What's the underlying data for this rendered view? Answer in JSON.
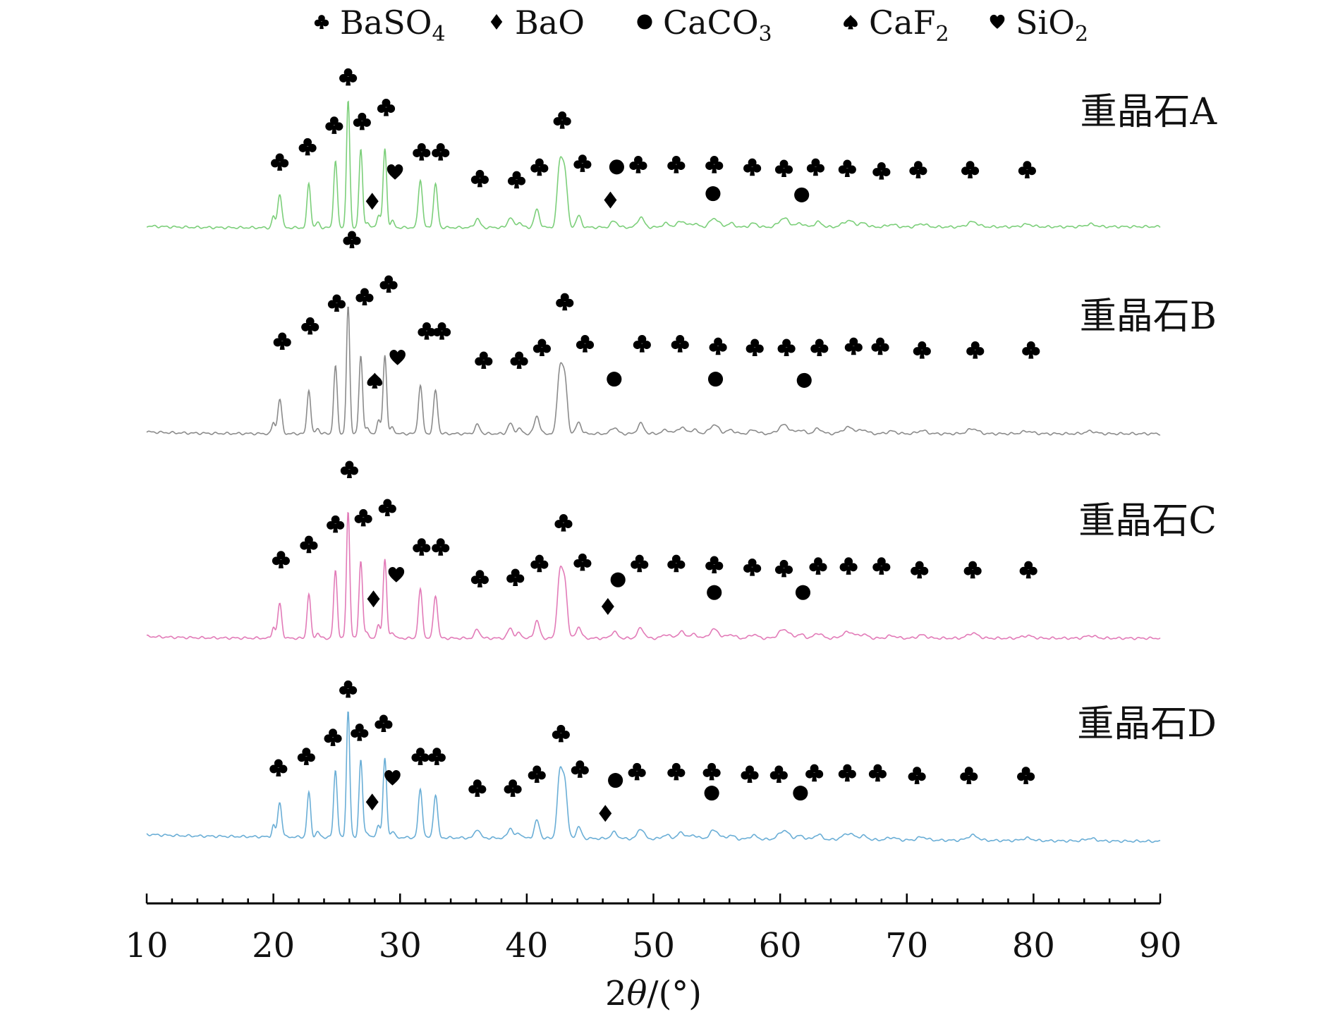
{
  "chart_data": {
    "type": "line",
    "title": "",
    "xlabel_prefix": "2",
    "xlabel_var": "θ",
    "xlabel_unit": "/(°)",
    "xlim": [
      10,
      90
    ],
    "xticks": [
      10,
      20,
      30,
      40,
      50,
      60,
      70,
      80,
      90
    ],
    "ylabel": "",
    "grid": false,
    "legend_position": "top",
    "legend": [
      {
        "symbol": "club",
        "base": "BaSO",
        "sub": "4"
      },
      {
        "symbol": "diamond",
        "base": "BaO",
        "sub": ""
      },
      {
        "symbol": "circle",
        "base": "CaCO",
        "sub": "3"
      },
      {
        "symbol": "spade",
        "base": "CaF",
        "sub": "2"
      },
      {
        "symbol": "heart",
        "base": "SiO",
        "sub": "2"
      }
    ],
    "peaks": [
      {
        "x": 20.5,
        "h": 0.27,
        "w": 0.16
      },
      {
        "x": 20.0,
        "h": 0.09,
        "w": 0.12
      },
      {
        "x": 22.8,
        "h": 0.35,
        "w": 0.14
      },
      {
        "x": 23.5,
        "h": 0.04,
        "w": 0.15
      },
      {
        "x": 24.9,
        "h": 0.53,
        "w": 0.14
      },
      {
        "x": 25.9,
        "h": 1.0,
        "w": 0.13
      },
      {
        "x": 26.9,
        "h": 0.61,
        "w": 0.14
      },
      {
        "x": 27.4,
        "h": 0.04,
        "w": 0.15
      },
      {
        "x": 28.3,
        "h": 0.1,
        "w": 0.14
      },
      {
        "x": 28.8,
        "h": 0.62,
        "w": 0.14
      },
      {
        "x": 29.4,
        "h": 0.05,
        "w": 0.15
      },
      {
        "x": 31.6,
        "h": 0.38,
        "w": 0.16
      },
      {
        "x": 32.8,
        "h": 0.34,
        "w": 0.16
      },
      {
        "x": 36.1,
        "h": 0.07,
        "w": 0.2
      },
      {
        "x": 38.7,
        "h": 0.08,
        "w": 0.2
      },
      {
        "x": 39.4,
        "h": 0.04,
        "w": 0.2
      },
      {
        "x": 40.8,
        "h": 0.14,
        "w": 0.2
      },
      {
        "x": 42.6,
        "h": 0.48,
        "w": 0.2
      },
      {
        "x": 43.0,
        "h": 0.42,
        "w": 0.2
      },
      {
        "x": 44.1,
        "h": 0.09,
        "w": 0.2
      },
      {
        "x": 46.9,
        "h": 0.05,
        "w": 0.25
      },
      {
        "x": 49.0,
        "h": 0.08,
        "w": 0.25
      },
      {
        "x": 51.0,
        "h": 0.03,
        "w": 0.3
      },
      {
        "x": 52.2,
        "h": 0.05,
        "w": 0.3
      },
      {
        "x": 53.2,
        "h": 0.03,
        "w": 0.3
      },
      {
        "x": 54.8,
        "h": 0.07,
        "w": 0.35
      },
      {
        "x": 56.1,
        "h": 0.03,
        "w": 0.3
      },
      {
        "x": 57.9,
        "h": 0.03,
        "w": 0.3
      },
      {
        "x": 60.3,
        "h": 0.07,
        "w": 0.4
      },
      {
        "x": 61.6,
        "h": 0.03,
        "w": 0.3
      },
      {
        "x": 63.0,
        "h": 0.04,
        "w": 0.3
      },
      {
        "x": 65.4,
        "h": 0.05,
        "w": 0.45
      },
      {
        "x": 66.6,
        "h": 0.03,
        "w": 0.3
      },
      {
        "x": 68.8,
        "h": 0.02,
        "w": 0.35
      },
      {
        "x": 71.2,
        "h": 0.025,
        "w": 0.35
      },
      {
        "x": 75.2,
        "h": 0.04,
        "w": 0.4
      },
      {
        "x": 79.5,
        "h": 0.02,
        "w": 0.4
      },
      {
        "x": 84.5,
        "h": 0.02,
        "w": 0.4
      }
    ],
    "series": [
      {
        "name": "重晶石A",
        "color": "#7ccf7a",
        "start_y": 0.01,
        "end_y": 0.02,
        "intensity_scale": 1.0,
        "markers": [
          {
            "symbol": "club",
            "x": 20.5,
            "level": 0.53
          },
          {
            "symbol": "club",
            "x": 22.7,
            "level": 0.65
          },
          {
            "symbol": "club",
            "x": 24.8,
            "level": 0.82
          },
          {
            "symbol": "club",
            "x": 25.9,
            "level": 1.2
          },
          {
            "symbol": "club",
            "x": 27.0,
            "level": 0.85
          },
          {
            "symbol": "club",
            "x": 28.9,
            "level": 0.96
          },
          {
            "symbol": "club",
            "x": 31.7,
            "level": 0.61
          },
          {
            "symbol": "club",
            "x": 33.2,
            "level": 0.61
          },
          {
            "symbol": "club",
            "x": 36.3,
            "level": 0.4
          },
          {
            "symbol": "club",
            "x": 39.2,
            "level": 0.39
          },
          {
            "symbol": "club",
            "x": 41.0,
            "level": 0.49
          },
          {
            "symbol": "club",
            "x": 42.8,
            "level": 0.86
          },
          {
            "symbol": "club",
            "x": 44.4,
            "level": 0.52
          },
          {
            "symbol": "club",
            "x": 48.8,
            "level": 0.51
          },
          {
            "symbol": "club",
            "x": 51.8,
            "level": 0.51
          },
          {
            "symbol": "club",
            "x": 54.8,
            "level": 0.51
          },
          {
            "symbol": "club",
            "x": 57.8,
            "level": 0.49
          },
          {
            "symbol": "club",
            "x": 60.3,
            "level": 0.48
          },
          {
            "symbol": "club",
            "x": 62.8,
            "level": 0.49
          },
          {
            "symbol": "club",
            "x": 65.3,
            "level": 0.48
          },
          {
            "symbol": "club",
            "x": 68.0,
            "level": 0.46
          },
          {
            "symbol": "club",
            "x": 70.9,
            "level": 0.47
          },
          {
            "symbol": "club",
            "x": 75.0,
            "level": 0.47
          },
          {
            "symbol": "club",
            "x": 79.5,
            "level": 0.47
          },
          {
            "symbol": "diamond",
            "x": 27.8,
            "level": 0.22
          },
          {
            "symbol": "diamond",
            "x": 46.6,
            "level": 0.23
          },
          {
            "symbol": "heart",
            "x": 29.6,
            "level": 0.45
          },
          {
            "symbol": "circle",
            "x": 47.1,
            "level": 0.49
          },
          {
            "symbol": "circle",
            "x": 54.7,
            "level": 0.28
          },
          {
            "symbol": "circle",
            "x": 61.7,
            "level": 0.27
          }
        ]
      },
      {
        "name": "重晶石B",
        "color": "#8b8b8b",
        "start_y": 0.0,
        "end_y": 0.0,
        "intensity_scale": 1.0,
        "markers": [
          {
            "symbol": "club",
            "x": 20.7,
            "level": 0.73
          },
          {
            "symbol": "club",
            "x": 22.9,
            "level": 0.85
          },
          {
            "symbol": "club",
            "x": 25.0,
            "level": 1.03
          },
          {
            "symbol": "club",
            "x": 26.2,
            "level": 1.53
          },
          {
            "symbol": "club",
            "x": 27.2,
            "level": 1.08
          },
          {
            "symbol": "club",
            "x": 29.1,
            "level": 1.18
          },
          {
            "symbol": "club",
            "x": 32.1,
            "level": 0.81
          },
          {
            "symbol": "club",
            "x": 33.3,
            "level": 0.81
          },
          {
            "symbol": "club",
            "x": 36.6,
            "level": 0.58
          },
          {
            "symbol": "club",
            "x": 39.4,
            "level": 0.58
          },
          {
            "symbol": "club",
            "x": 41.2,
            "level": 0.68
          },
          {
            "symbol": "club",
            "x": 43.0,
            "level": 1.04
          },
          {
            "symbol": "club",
            "x": 44.6,
            "level": 0.71
          },
          {
            "symbol": "club",
            "x": 49.1,
            "level": 0.71
          },
          {
            "symbol": "club",
            "x": 52.1,
            "level": 0.71
          },
          {
            "symbol": "club",
            "x": 55.1,
            "level": 0.69
          },
          {
            "symbol": "club",
            "x": 58.0,
            "level": 0.68
          },
          {
            "symbol": "club",
            "x": 60.5,
            "level": 0.68
          },
          {
            "symbol": "club",
            "x": 63.1,
            "level": 0.68
          },
          {
            "symbol": "club",
            "x": 65.8,
            "level": 0.69
          },
          {
            "symbol": "club",
            "x": 67.9,
            "level": 0.69
          },
          {
            "symbol": "club",
            "x": 71.2,
            "level": 0.66
          },
          {
            "symbol": "club",
            "x": 75.4,
            "level": 0.66
          },
          {
            "symbol": "club",
            "x": 79.8,
            "level": 0.66
          },
          {
            "symbol": "spade",
            "x": 28.0,
            "level": 0.42
          },
          {
            "symbol": "heart",
            "x": 29.8,
            "level": 0.6
          },
          {
            "symbol": "circle",
            "x": 46.9,
            "level": 0.43
          },
          {
            "symbol": "circle",
            "x": 54.9,
            "level": 0.43
          },
          {
            "symbol": "circle",
            "x": 61.9,
            "level": 0.42
          }
        ]
      },
      {
        "name": "重晶石C",
        "color": "#e27bb8",
        "start_y": 0.0,
        "end_y": 0.0,
        "intensity_scale": 1.0,
        "markers": [
          {
            "symbol": "club",
            "x": 20.6,
            "level": 0.62
          },
          {
            "symbol": "club",
            "x": 22.8,
            "level": 0.74
          },
          {
            "symbol": "club",
            "x": 24.9,
            "level": 0.9
          },
          {
            "symbol": "club",
            "x": 26.0,
            "level": 1.33
          },
          {
            "symbol": "club",
            "x": 27.1,
            "level": 0.95
          },
          {
            "symbol": "club",
            "x": 29.0,
            "level": 1.03
          },
          {
            "symbol": "club",
            "x": 31.7,
            "level": 0.72
          },
          {
            "symbol": "club",
            "x": 33.2,
            "level": 0.72
          },
          {
            "symbol": "club",
            "x": 36.3,
            "level": 0.47
          },
          {
            "symbol": "club",
            "x": 39.1,
            "level": 0.48
          },
          {
            "symbol": "club",
            "x": 41.0,
            "level": 0.59
          },
          {
            "symbol": "club",
            "x": 42.9,
            "level": 0.91
          },
          {
            "symbol": "club",
            "x": 44.4,
            "level": 0.6
          },
          {
            "symbol": "club",
            "x": 48.9,
            "level": 0.59
          },
          {
            "symbol": "club",
            "x": 51.8,
            "level": 0.59
          },
          {
            "symbol": "club",
            "x": 54.8,
            "level": 0.58
          },
          {
            "symbol": "club",
            "x": 57.8,
            "level": 0.56
          },
          {
            "symbol": "club",
            "x": 60.3,
            "level": 0.55
          },
          {
            "symbol": "club",
            "x": 63.0,
            "level": 0.57
          },
          {
            "symbol": "club",
            "x": 65.4,
            "level": 0.57
          },
          {
            "symbol": "club",
            "x": 68.0,
            "level": 0.57
          },
          {
            "symbol": "club",
            "x": 71.0,
            "level": 0.54
          },
          {
            "symbol": "club",
            "x": 75.2,
            "level": 0.54
          },
          {
            "symbol": "club",
            "x": 79.6,
            "level": 0.54
          },
          {
            "symbol": "diamond",
            "x": 27.9,
            "level": 0.31
          },
          {
            "symbol": "diamond",
            "x": 46.4,
            "level": 0.25
          },
          {
            "symbol": "heart",
            "x": 29.7,
            "level": 0.5
          },
          {
            "symbol": "circle",
            "x": 47.2,
            "level": 0.46
          },
          {
            "symbol": "circle",
            "x": 54.8,
            "level": 0.36
          },
          {
            "symbol": "circle",
            "x": 61.8,
            "level": 0.36
          }
        ]
      },
      {
        "name": "重晶石D",
        "color": "#6aaed6",
        "start_y": 0.04,
        "end_y": 0.0,
        "intensity_scale": 1.0,
        "markers": [
          {
            "symbol": "club",
            "x": 20.4,
            "level": 0.58
          },
          {
            "symbol": "club",
            "x": 22.6,
            "level": 0.67
          },
          {
            "symbol": "club",
            "x": 24.7,
            "level": 0.82
          },
          {
            "symbol": "club",
            "x": 25.9,
            "level": 1.2
          },
          {
            "symbol": "club",
            "x": 26.8,
            "level": 0.86
          },
          {
            "symbol": "club",
            "x": 28.7,
            "level": 0.93
          },
          {
            "symbol": "club",
            "x": 31.6,
            "level": 0.67
          },
          {
            "symbol": "club",
            "x": 32.9,
            "level": 0.67
          },
          {
            "symbol": "club",
            "x": 36.1,
            "level": 0.42
          },
          {
            "symbol": "club",
            "x": 38.9,
            "level": 0.42
          },
          {
            "symbol": "club",
            "x": 40.8,
            "level": 0.53
          },
          {
            "symbol": "club",
            "x": 42.7,
            "level": 0.85
          },
          {
            "symbol": "club",
            "x": 44.2,
            "level": 0.57
          },
          {
            "symbol": "club",
            "x": 48.7,
            "level": 0.55
          },
          {
            "symbol": "club",
            "x": 51.8,
            "level": 0.55
          },
          {
            "symbol": "club",
            "x": 54.6,
            "level": 0.55
          },
          {
            "symbol": "club",
            "x": 57.6,
            "level": 0.53
          },
          {
            "symbol": "club",
            "x": 59.9,
            "level": 0.53
          },
          {
            "symbol": "club",
            "x": 62.7,
            "level": 0.54
          },
          {
            "symbol": "club",
            "x": 65.3,
            "level": 0.54
          },
          {
            "symbol": "club",
            "x": 67.7,
            "level": 0.54
          },
          {
            "symbol": "club",
            "x": 70.8,
            "level": 0.52
          },
          {
            "symbol": "club",
            "x": 74.9,
            "level": 0.52
          },
          {
            "symbol": "club",
            "x": 79.4,
            "level": 0.52
          },
          {
            "symbol": "diamond",
            "x": 27.8,
            "level": 0.31
          },
          {
            "symbol": "diamond",
            "x": 46.2,
            "level": 0.22
          },
          {
            "symbol": "heart",
            "x": 29.4,
            "level": 0.5
          },
          {
            "symbol": "circle",
            "x": 47.0,
            "level": 0.48
          },
          {
            "symbol": "circle",
            "x": 54.6,
            "level": 0.38
          },
          {
            "symbol": "circle",
            "x": 61.6,
            "level": 0.38
          }
        ]
      }
    ]
  }
}
